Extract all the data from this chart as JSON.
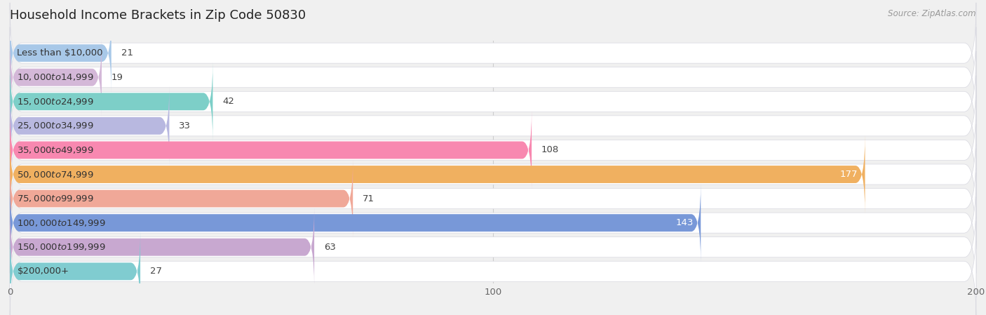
{
  "title": "Household Income Brackets in Zip Code 50830",
  "source": "Source: ZipAtlas.com",
  "categories": [
    "Less than $10,000",
    "$10,000 to $14,999",
    "$15,000 to $24,999",
    "$25,000 to $34,999",
    "$35,000 to $49,999",
    "$50,000 to $74,999",
    "$75,000 to $99,999",
    "$100,000 to $149,999",
    "$150,000 to $199,999",
    "$200,000+"
  ],
  "values": [
    21,
    19,
    42,
    33,
    108,
    177,
    71,
    143,
    63,
    27
  ],
  "bar_colors": [
    "#a8c8e8",
    "#d4b8d8",
    "#7dcfc8",
    "#b8b8e0",
    "#f888b0",
    "#f0b060",
    "#f0a898",
    "#7898d8",
    "#c8a8d0",
    "#80ccd0"
  ],
  "xlim": [
    0,
    200
  ],
  "xticks": [
    0,
    100,
    200
  ],
  "background_color": "#f0f0f0",
  "bar_bg_color": "#e8e8ee",
  "bar_bg_inner_color": "#ffffff",
  "title_fontsize": 13,
  "label_fontsize": 9.5,
  "value_fontsize": 9.5
}
